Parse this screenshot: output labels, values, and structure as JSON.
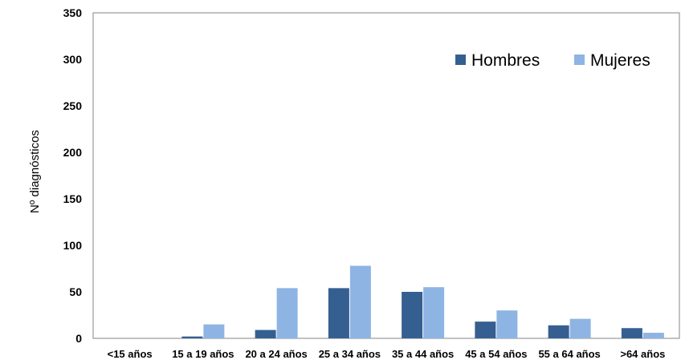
{
  "chart_data": {
    "type": "bar",
    "title": "",
    "xlabel": "",
    "ylabel": "Nº diagnósticos",
    "ylim": [
      0,
      350
    ],
    "yticks": [
      0,
      50,
      100,
      150,
      200,
      250,
      300,
      350
    ],
    "grid": false,
    "legend_position": "top-right",
    "categories": [
      "<15 años",
      "15 a 19 años",
      "20 a 24 años",
      "25 a 34 años",
      "35 a 44 años",
      "45 a 54 años",
      "55 a 64 años",
      ">64 años"
    ],
    "series": [
      {
        "name": "Hombres",
        "color": "#365F91",
        "values": [
          0,
          2,
          9,
          54,
          50,
          18,
          14,
          11
        ]
      },
      {
        "name": "Mujeres",
        "color": "#8EB4E3",
        "values": [
          0,
          15,
          54,
          78,
          55,
          30,
          21,
          6
        ]
      }
    ]
  }
}
